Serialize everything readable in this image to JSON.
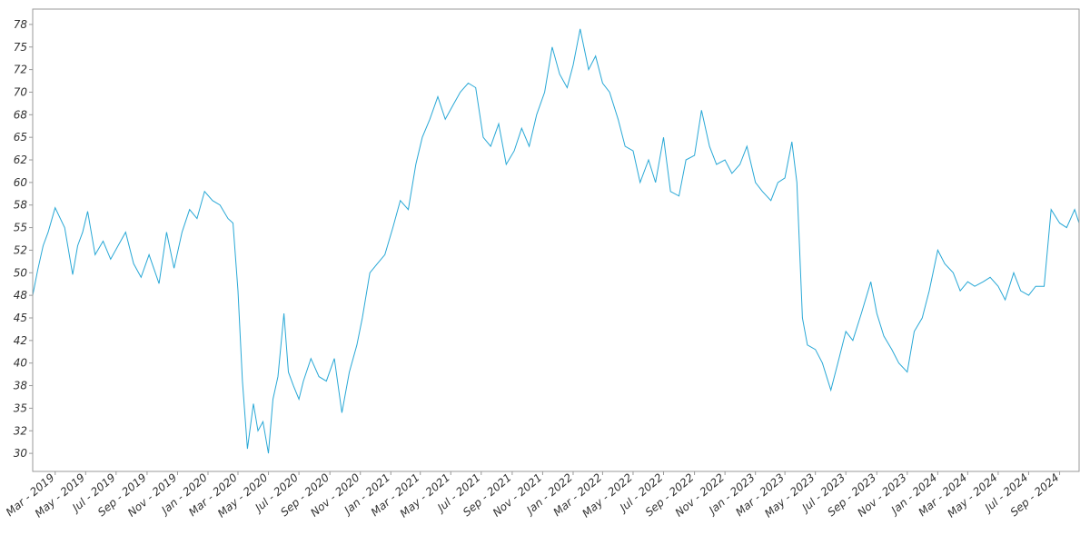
{
  "chart_data": {
    "type": "line",
    "title": "",
    "xlabel": "",
    "ylabel": "",
    "grid": false,
    "legend": "none",
    "xlim": [
      "2019-01-15",
      "2024-10-10"
    ],
    "ylim": [
      28.0,
      79.2
    ],
    "yticks": [
      "30",
      "32",
      "35",
      "38",
      "40",
      "42",
      "45",
      "48",
      "50",
      "52",
      "55",
      "58",
      "60",
      "62",
      "65",
      "68",
      "70",
      "72",
      "75",
      "78"
    ],
    "ytick_values": [
      30,
      32.5,
      35,
      37.5,
      40,
      42.5,
      45,
      47.5,
      50,
      52.5,
      55,
      57.5,
      60,
      62.5,
      65,
      67.5,
      70,
      72.5,
      75,
      77.5
    ],
    "xticks": [
      {
        "date": "2019-03-01",
        "label": "Mar - 2019"
      },
      {
        "date": "2019-05-01",
        "label": "May - 2019"
      },
      {
        "date": "2019-07-01",
        "label": "Jul - 2019"
      },
      {
        "date": "2019-09-01",
        "label": "Sep - 2019"
      },
      {
        "date": "2019-11-01",
        "label": "Nov - 2019"
      },
      {
        "date": "2020-01-01",
        "label": "Jan - 2020"
      },
      {
        "date": "2020-03-01",
        "label": "Mar - 2020"
      },
      {
        "date": "2020-05-01",
        "label": "May - 2020"
      },
      {
        "date": "2020-07-01",
        "label": "Jul - 2020"
      },
      {
        "date": "2020-09-01",
        "label": "Sep - 2020"
      },
      {
        "date": "2020-11-01",
        "label": "Nov - 2020"
      },
      {
        "date": "2021-01-01",
        "label": "Jan - 2021"
      },
      {
        "date": "2021-03-01",
        "label": "Mar - 2021"
      },
      {
        "date": "2021-05-01",
        "label": "May - 2021"
      },
      {
        "date": "2021-07-01",
        "label": "Jul - 2021"
      },
      {
        "date": "2021-09-01",
        "label": "Sep - 2021"
      },
      {
        "date": "2021-11-01",
        "label": "Nov - 2021"
      },
      {
        "date": "2022-01-01",
        "label": "Jan - 2022"
      },
      {
        "date": "2022-03-01",
        "label": "Mar - 2022"
      },
      {
        "date": "2022-05-01",
        "label": "May - 2022"
      },
      {
        "date": "2022-07-01",
        "label": "Jul - 2022"
      },
      {
        "date": "2022-09-01",
        "label": "Sep - 2022"
      },
      {
        "date": "2022-11-01",
        "label": "Nov - 2022"
      },
      {
        "date": "2023-01-01",
        "label": "Jan - 2023"
      },
      {
        "date": "2023-03-01",
        "label": "Mar - 2023"
      },
      {
        "date": "2023-05-01",
        "label": "May - 2023"
      },
      {
        "date": "2023-07-01",
        "label": "Jul - 2023"
      },
      {
        "date": "2023-09-01",
        "label": "Sep - 2023"
      },
      {
        "date": "2023-11-01",
        "label": "Nov - 2023"
      },
      {
        "date": "2024-01-01",
        "label": "Jan - 2024"
      },
      {
        "date": "2024-03-01",
        "label": "Mar - 2024"
      },
      {
        "date": "2024-05-01",
        "label": "May - 2024"
      },
      {
        "date": "2024-07-01",
        "label": "Jul - 2024"
      },
      {
        "date": "2024-09-01",
        "label": "Sep - 2024"
      }
    ],
    "colors": {
      "line": "#29a8d6",
      "axis": "#999999",
      "tick_label": "#333333"
    },
    "series": [
      {
        "x": [
          "2019-01-15",
          "2019-01-25",
          "2019-02-05",
          "2019-02-15",
          "2019-03-01",
          "2019-03-20",
          "2019-04-05",
          "2019-04-15",
          "2019-04-25",
          "2019-05-05",
          "2019-05-20",
          "2019-06-05",
          "2019-06-20",
          "2019-07-05",
          "2019-07-20",
          "2019-08-05",
          "2019-08-20",
          "2019-09-05",
          "2019-09-25",
          "2019-10-10",
          "2019-10-25",
          "2019-11-10",
          "2019-11-25",
          "2019-12-10",
          "2019-12-25",
          "2020-01-10",
          "2020-01-25",
          "2020-02-10",
          "2020-02-20",
          "2020-03-01",
          "2020-03-10",
          "2020-03-20",
          "2020-04-01",
          "2020-04-10",
          "2020-04-20",
          "2020-05-01",
          "2020-05-10",
          "2020-05-20",
          "2020-06-01",
          "2020-06-10",
          "2020-06-20",
          "2020-07-01",
          "2020-07-10",
          "2020-07-25",
          "2020-08-10",
          "2020-08-25",
          "2020-09-10",
          "2020-09-25",
          "2020-10-10",
          "2020-10-25",
          "2020-11-05",
          "2020-11-20",
          "2020-12-05",
          "2020-12-20",
          "2021-01-05",
          "2021-01-20",
          "2021-02-05",
          "2021-02-20",
          "2021-03-05",
          "2021-03-20",
          "2021-04-05",
          "2021-04-20",
          "2021-05-05",
          "2021-05-20",
          "2021-06-05",
          "2021-06-20",
          "2021-07-05",
          "2021-07-20",
          "2021-08-05",
          "2021-08-20",
          "2021-09-05",
          "2021-09-20",
          "2021-10-05",
          "2021-10-20",
          "2021-11-05",
          "2021-11-20",
          "2021-12-05",
          "2021-12-20",
          "2022-01-01",
          "2022-01-15",
          "2022-02-01",
          "2022-02-15",
          "2022-03-01",
          "2022-03-15",
          "2022-04-01",
          "2022-04-15",
          "2022-05-01",
          "2022-05-15",
          "2022-06-01",
          "2022-06-15",
          "2022-07-01",
          "2022-07-15",
          "2022-08-01",
          "2022-08-15",
          "2022-09-01",
          "2022-09-15",
          "2022-10-01",
          "2022-10-15",
          "2022-11-01",
          "2022-11-15",
          "2022-12-01",
          "2022-12-15",
          "2023-01-01",
          "2023-01-15",
          "2023-02-01",
          "2023-02-15",
          "2023-03-01",
          "2023-03-15",
          "2023-03-25",
          "2023-04-05",
          "2023-04-15",
          "2023-05-01",
          "2023-05-15",
          "2023-06-01",
          "2023-06-15",
          "2023-07-01",
          "2023-07-15",
          "2023-08-01",
          "2023-08-20",
          "2023-09-01",
          "2023-09-15",
          "2023-10-01",
          "2023-10-15",
          "2023-11-01",
          "2023-11-15",
          "2023-12-01",
          "2023-12-15",
          "2024-01-01",
          "2024-01-15",
          "2024-02-01",
          "2024-02-15",
          "2024-03-01",
          "2024-03-15",
          "2024-04-01",
          "2024-04-15",
          "2024-05-01",
          "2024-05-15",
          "2024-06-01",
          "2024-06-15",
          "2024-07-01",
          "2024-07-15",
          "2024-08-01",
          "2024-08-15",
          "2024-09-01",
          "2024-09-15",
          "2024-10-01",
          "2024-10-10"
        ],
        "y": [
          47.5,
          50.3,
          53.0,
          54.5,
          57.2,
          55.0,
          49.8,
          53.0,
          54.5,
          56.8,
          52.0,
          53.5,
          51.5,
          53.0,
          54.5,
          51.0,
          49.5,
          52.0,
          48.8,
          54.5,
          50.5,
          54.5,
          57.0,
          56.0,
          59.0,
          58.0,
          57.5,
          56.0,
          55.5,
          48.0,
          38.0,
          30.5,
          35.5,
          32.5,
          33.5,
          30.0,
          36.0,
          38.5,
          45.5,
          39.0,
          37.5,
          36.0,
          38.0,
          40.5,
          38.5,
          38.0,
          40.5,
          34.5,
          39.0,
          42.0,
          45.0,
          50.0,
          51.0,
          52.0,
          55.0,
          58.0,
          57.0,
          62.0,
          65.0,
          67.0,
          69.5,
          67.0,
          68.5,
          70.0,
          71.0,
          70.5,
          65.0,
          64.0,
          66.5,
          62.0,
          63.5,
          66.0,
          64.0,
          67.5,
          70.0,
          75.0,
          72.0,
          70.5,
          73.0,
          77.0,
          72.5,
          74.0,
          71.0,
          70.0,
          67.0,
          64.0,
          63.5,
          60.0,
          62.5,
          60.0,
          65.0,
          59.0,
          58.5,
          62.5,
          63.0,
          68.0,
          64.0,
          62.0,
          62.5,
          61.0,
          62.0,
          64.0,
          60.0,
          59.0,
          58.0,
          60.0,
          60.5,
          64.5,
          60.0,
          45.0,
          42.0,
          41.5,
          40.0,
          37.0,
          40.0,
          43.5,
          42.5,
          45.5,
          49.0,
          45.5,
          43.0,
          41.5,
          40.0,
          39.0,
          43.5,
          45.0,
          48.0,
          52.5,
          51.0,
          50.0,
          48.0,
          49.0,
          48.5,
          49.0,
          49.5,
          48.5,
          47.0,
          50.0,
          48.0,
          47.5,
          48.5,
          48.5,
          57.0,
          55.5,
          55.0,
          57.0,
          55.5
        ]
      }
    ]
  }
}
